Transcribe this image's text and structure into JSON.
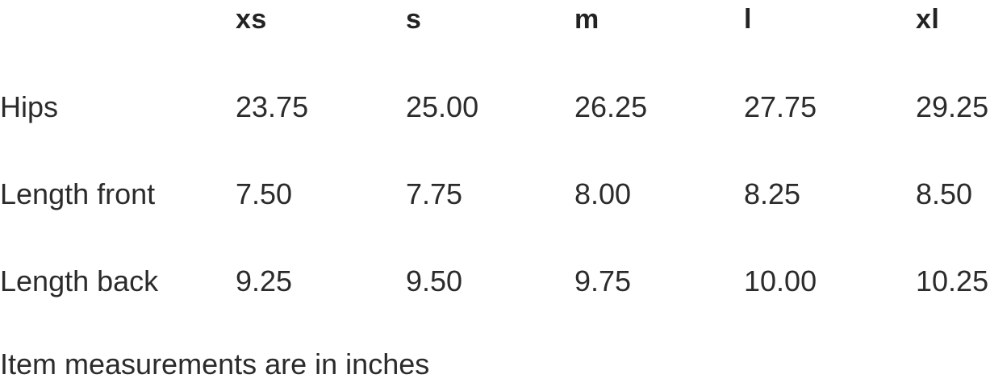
{
  "size_chart": {
    "columns": [
      "xs",
      "s",
      "m",
      "l",
      "xl"
    ],
    "rows": [
      {
        "label": "Hips",
        "values": [
          "23.75",
          "25.00",
          "26.25",
          "27.75",
          "29.25"
        ]
      },
      {
        "label": "Length front",
        "values": [
          "7.50",
          "7.75",
          "8.00",
          "8.25",
          "8.50"
        ]
      },
      {
        "label": "Length back",
        "values": [
          "9.25",
          "9.50",
          "9.75",
          "10.00",
          "10.25"
        ]
      }
    ],
    "note": "Item measurements are in inches"
  },
  "chart_data": {
    "type": "table",
    "title": "",
    "columns": [
      "",
      "xs",
      "s",
      "m",
      "l",
      "xl"
    ],
    "rows": [
      [
        "Hips",
        23.75,
        25.0,
        26.25,
        27.75,
        29.25
      ],
      [
        "Length front",
        7.5,
        7.75,
        8.0,
        8.25,
        8.5
      ],
      [
        "Length back",
        9.25,
        9.5,
        9.75,
        10.0,
        10.25
      ]
    ],
    "units": "inches",
    "footnote": "Item measurements are in inches",
    "layout": {
      "gridlines": false,
      "header_bold": true,
      "background": "#ffffff"
    }
  },
  "colors": {
    "background": "#ffffff",
    "header_text": "#232323",
    "body_text": "#2b2b2b"
  }
}
